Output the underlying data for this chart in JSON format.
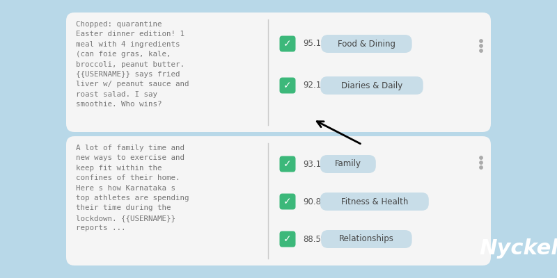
{
  "background_color": "#b8d8e8",
  "green_color": "#3cb87a",
  "label_bg_color": "#c8dde8",
  "card_bg": "#f5f5f5",
  "text_color": "#777777",
  "conf_color": "#555555",
  "label_text_color": "#444444",
  "card1": {
    "text": "Chopped: quarantine\nEaster dinner edition! 1\nmeal with 4 ingredients\n(can foie gras, kale,\nbroccoli, peanut butter.\n{{USERNAME}} says fried\nliver w/ peanut sauce and\nroast salad. I say\nsmoothie. Who wins?",
    "rows": [
      {
        "confidence": "95.1%",
        "name": "Food & Dining"
      },
      {
        "confidence": "92.1%",
        "name": "Diaries & Daily"
      }
    ]
  },
  "card2": {
    "text": "A lot of family time and\nnew ways to exercise and\nkeep fit within the\nconfines of their home.\nHere s how Karnataka s\ntop athletes are spending\ntheir time during the\nlockdown. {{USERNAME}}\nreports ...",
    "rows": [
      {
        "confidence": "93.1%",
        "name": "Family"
      },
      {
        "confidence": "90.8%",
        "name": "Fitness & Health"
      },
      {
        "confidence": "88.5%",
        "name": "Relationships"
      }
    ]
  },
  "branding": "Nyckel",
  "branding_color": "#ffffff"
}
